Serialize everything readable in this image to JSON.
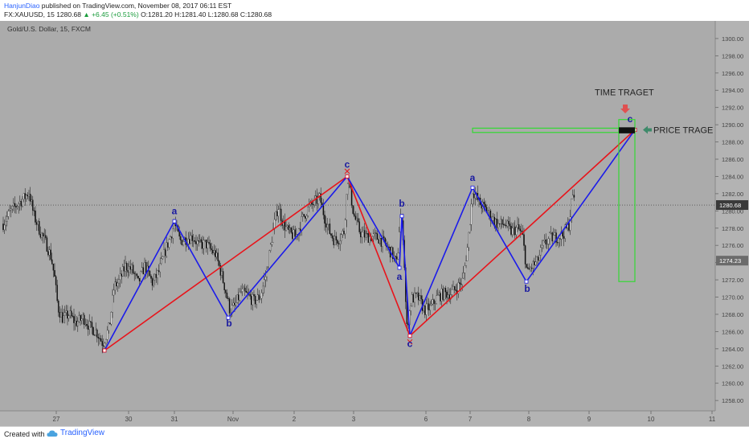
{
  "header": {
    "author": "HanjunDiao",
    "published": " published on TradingView.com, November 08, 2017 06:11 EST",
    "symbol": "FX:XAUUSD, 15",
    "last": "1280.68",
    "change": "▲ +6.45 (+0.51%)",
    "ohlc": "O:1281.20 H:1281.40 L:1280.68 C:1280.68"
  },
  "chart_data": {
    "type": "candlestick",
    "title": "Gold/U.S. Dollar, 15, FXCM",
    "ylim": [
      1256.8,
      1301.3
    ],
    "y_ticks": [
      "1258.00",
      "1260.00",
      "1262.00",
      "1264.00",
      "1266.00",
      "1268.00",
      "1270.00",
      "1272.00",
      "1274.00",
      "1276.00",
      "1278.00",
      "1280.00",
      "1282.00",
      "1284.00",
      "1286.00",
      "1288.00",
      "1290.00",
      "1292.00",
      "1294.00",
      "1296.00",
      "1298.00",
      "1300.00"
    ],
    "x_ticks": [
      {
        "label": "27",
        "x": 70
      },
      {
        "label": "30",
        "x": 160
      },
      {
        "label": "31",
        "x": 217
      },
      {
        "label": "Nov",
        "x": 290
      },
      {
        "label": "2",
        "x": 366
      },
      {
        "label": "3",
        "x": 440
      },
      {
        "label": "6",
        "x": 530
      },
      {
        "label": "7",
        "x": 585
      },
      {
        "label": "8",
        "x": 658
      },
      {
        "label": "9",
        "x": 733
      },
      {
        "label": "10",
        "x": 810
      },
      {
        "label": "11",
        "x": 886
      }
    ],
    "x_range": [
      0,
      890
    ],
    "price_labels": [
      {
        "text": "1280.68",
        "price": 1280.68,
        "style": "dark"
      },
      {
        "text": "1274.23",
        "price": 1274.23,
        "style": "gray"
      }
    ],
    "current_price": 1280.68,
    "price_path": [
      [
        4,
        1278.5
      ],
      [
        12,
        1279.8
      ],
      [
        22,
        1280.8
      ],
      [
        30,
        1281.5
      ],
      [
        36,
        1282.2
      ],
      [
        42,
        1279.5
      ],
      [
        50,
        1277.6
      ],
      [
        58,
        1276.1
      ],
      [
        64,
        1274.5
      ],
      [
        68,
        1272.2
      ],
      [
        72,
        1268.8
      ],
      [
        78,
        1267.5
      ],
      [
        86,
        1268.0
      ],
      [
        94,
        1267.0
      ],
      [
        104,
        1267.6
      ],
      [
        112,
        1266.5
      ],
      [
        120,
        1266.0
      ],
      [
        128,
        1264.6
      ],
      [
        136,
        1266.5
      ],
      [
        142,
        1271.2
      ],
      [
        148,
        1271.8
      ],
      [
        156,
        1273.6
      ],
      [
        164,
        1273.2
      ],
      [
        172,
        1271.6
      ],
      [
        180,
        1273.6
      ],
      [
        190,
        1271.6
      ],
      [
        198,
        1273.0
      ],
      [
        206,
        1275.5
      ],
      [
        212,
        1277.0
      ],
      [
        217,
        1278.5
      ],
      [
        224,
        1276.5
      ],
      [
        232,
        1276.8
      ],
      [
        240,
        1277.0
      ],
      [
        248,
        1276.0
      ],
      [
        256,
        1276.2
      ],
      [
        262,
        1275.5
      ],
      [
        268,
        1275.0
      ],
      [
        274,
        1273.2
      ],
      [
        280,
        1271.0
      ],
      [
        286,
        1268.5
      ],
      [
        292,
        1268.9
      ],
      [
        300,
        1270.6
      ],
      [
        308,
        1270.2
      ],
      [
        316,
        1269.5
      ],
      [
        324,
        1270.1
      ],
      [
        332,
        1273.0
      ],
      [
        340,
        1277.8
      ],
      [
        346,
        1280.6
      ],
      [
        352,
        1278.6
      ],
      [
        360,
        1277.4
      ],
      [
        368,
        1277.0
      ],
      [
        376,
        1279.0
      ],
      [
        384,
        1280.4
      ],
      [
        392,
        1281.0
      ],
      [
        398,
        1281.5
      ],
      [
        404,
        1279.2
      ],
      [
        410,
        1277.6
      ],
      [
        416,
        1276.6
      ],
      [
        422,
        1276.8
      ],
      [
        428,
        1277.6
      ],
      [
        433,
        1284.0
      ],
      [
        440,
        1279.6
      ],
      [
        448,
        1277.5
      ],
      [
        456,
        1277.0
      ],
      [
        464,
        1277.0
      ],
      [
        472,
        1276.8
      ],
      [
        480,
        1276.0
      ],
      [
        488,
        1275.0
      ],
      [
        494,
        1273.8
      ],
      [
        498,
        1279.6
      ],
      [
        502,
        1277.0
      ],
      [
        506,
        1266.2
      ],
      [
        512,
        1269.8
      ],
      [
        520,
        1270.0
      ],
      [
        528,
        1268.5
      ],
      [
        536,
        1268.8
      ],
      [
        544,
        1270.0
      ],
      [
        552,
        1270.4
      ],
      [
        560,
        1270.4
      ],
      [
        568,
        1271.0
      ],
      [
        576,
        1272.0
      ],
      [
        582,
        1276.0
      ],
      [
        588,
        1282.4
      ],
      [
        596,
        1281.0
      ],
      [
        604,
        1280.2
      ],
      [
        612,
        1279.2
      ],
      [
        620,
        1278.4
      ],
      [
        628,
        1278.5
      ],
      [
        636,
        1277.6
      ],
      [
        644,
        1278.0
      ],
      [
        650,
        1277.2
      ],
      [
        656,
        1272.7
      ],
      [
        662,
        1273.6
      ],
      [
        668,
        1274.0
      ],
      [
        676,
        1276.0
      ],
      [
        684,
        1276.8
      ],
      [
        692,
        1277.0
      ],
      [
        700,
        1277.2
      ],
      [
        708,
        1278.4
      ],
      [
        712,
        1281.5
      ],
      [
        716,
        1282.0
      ]
    ],
    "waves": {
      "red": [
        [
          130,
          1263.8
        ],
        [
          432,
          1284.0
        ],
        [
          510,
          1265.5
        ],
        [
          790,
          1289.4
        ]
      ],
      "blue": [
        [
          130,
          1263.8
        ],
        [
          217,
          1278.8
        ],
        [
          284,
          1267.6
        ],
        [
          432,
          1284.0
        ],
        [
          497,
          1273.4
        ],
        [
          500,
          1279.4
        ],
        [
          510,
          1265.5
        ],
        [
          588,
          1282.7
        ],
        [
          655,
          1271.8
        ],
        [
          790,
          1289.4
        ]
      ]
    },
    "wave_labels": [
      {
        "text": "a",
        "x": 217,
        "price": 1279.6,
        "color": "#1a1aa0"
      },
      {
        "text": "b",
        "x": 285,
        "price": 1266.6,
        "color": "#1a1aa0"
      },
      {
        "text": "c",
        "x": 432,
        "price": 1285.0,
        "color": "#1a1aa0"
      },
      {
        "text": "b",
        "x": 500,
        "price": 1280.5,
        "color": "#1a1aa0"
      },
      {
        "text": "a",
        "x": 497,
        "price": 1272.0,
        "color": "#1a1aa0"
      },
      {
        "text": "c",
        "x": 510,
        "price": 1264.2,
        "color": "#1a1aa0"
      },
      {
        "text": "a",
        "x": 588,
        "price": 1283.5,
        "color": "#1a1aa0"
      },
      {
        "text": "b",
        "x": 656,
        "price": 1270.6,
        "color": "#1a1aa0"
      },
      {
        "text": "c",
        "x": 784,
        "price": 1290.3,
        "color": "#1a1aa0"
      }
    ],
    "annotations": {
      "time_target": "TIME TRAGET",
      "price_target": "PRICE TRAGE"
    },
    "colors": {
      "background": "#b3b3b3",
      "plot": "#ababab",
      "candle_up": "#ffffff",
      "candle_down": "#111111",
      "wave_red": "#e8141b",
      "wave_blue": "#1b1bea",
      "target_box": "#34d934",
      "arrow_red": "#e05050",
      "arrow_green": "#3e8a6a"
    }
  },
  "footer": {
    "created_with": "Created with",
    "brand": "TradingView"
  }
}
